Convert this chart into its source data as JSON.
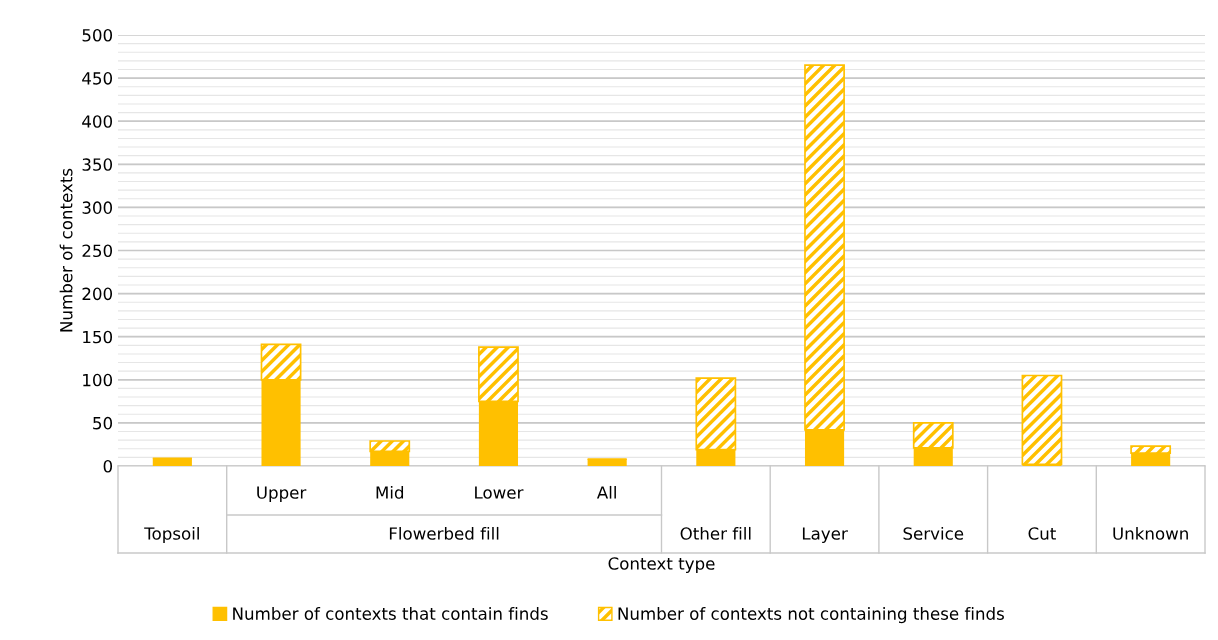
{
  "chart_data": {
    "type": "bar",
    "stacked": true,
    "xlabel": "Context type",
    "ylabel": "Number of contexts",
    "categories": [
      "Topsoil",
      "Upper",
      "Mid",
      "Lower",
      "All",
      "Other fill",
      "Layer",
      "Service",
      "Cut",
      "Unknown"
    ],
    "annotations": [
      "Flowerbed fill"
    ],
    "series": [
      {
        "name": "Number of contexts that contain finds",
        "color": "#ffc000",
        "values": [
          9,
          100,
          17,
          75,
          8,
          19,
          42,
          21,
          2,
          15
        ]
      },
      {
        "name": "Number of contexts not containing these finds",
        "color": "#ffc000",
        "values": [
          0,
          41,
          12,
          63,
          0,
          83,
          423,
          29,
          103,
          8
        ]
      }
    ],
    "ylim": [
      0,
      500
    ],
    "yticks": [
      0,
      50,
      100,
      150,
      200,
      250,
      300,
      350,
      400,
      450,
      500
    ],
    "grid": true,
    "legend": "bottom"
  }
}
